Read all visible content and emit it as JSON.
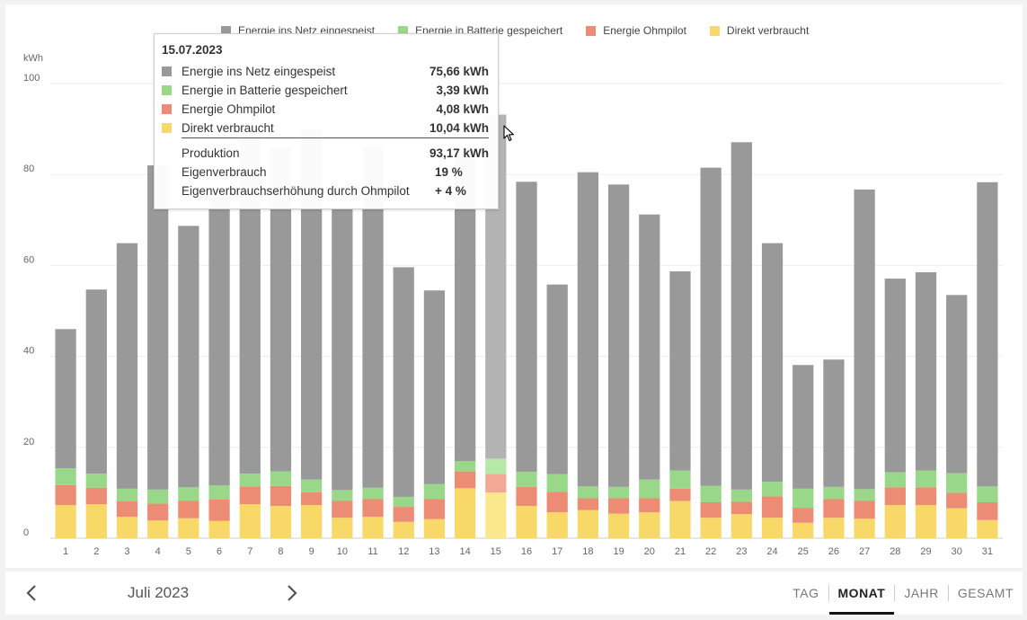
{
  "colors": {
    "grid": "#999999",
    "battery": "#99d888",
    "ohmpilot": "#ec8c75",
    "direct": "#f8d866",
    "grid_hl": "#b3b3b3",
    "battery_hl": "#b6e8a8",
    "ohmpilot_hl": "#f3a896",
    "direct_hl": "#fbe88c"
  },
  "legend": [
    {
      "label": "Energie ins Netz eingespeist",
      "color": "#999999"
    },
    {
      "label": "Energie in Batterie gespeichert",
      "color": "#99d888"
    },
    {
      "label": "Energie Ohmpilot",
      "color": "#ec8c75"
    },
    {
      "label": "Direkt verbraucht",
      "color": "#f8d866"
    }
  ],
  "chart_data": {
    "type": "bar",
    "stacked": true,
    "ylabel": "kWh",
    "ylim": [
      0,
      100
    ],
    "yticks": [
      0,
      20,
      40,
      60,
      80,
      100
    ],
    "grid": true,
    "legend_position": "top",
    "highlighted_category": "15",
    "categories": [
      "1",
      "2",
      "3",
      "4",
      "5",
      "6",
      "7",
      "8",
      "9",
      "10",
      "11",
      "12",
      "13",
      "14",
      "15",
      "16",
      "17",
      "18",
      "19",
      "20",
      "21",
      "22",
      "23",
      "24",
      "25",
      "26",
      "27",
      "28",
      "29",
      "30",
      "31"
    ],
    "series": [
      {
        "name": "Direkt verbraucht",
        "values": [
          7.3,
          7.5,
          4.7,
          3.9,
          4.4,
          3.8,
          7.5,
          7.1,
          7.3,
          4.5,
          4.7,
          3.6,
          4.2,
          11.0,
          10.04,
          7.1,
          5.7,
          6.2,
          5.4,
          5.7,
          8.2,
          4.5,
          5.3,
          4.5,
          3.4,
          4.5,
          4.3,
          7.3,
          7.3,
          6.6,
          4.0
        ]
      },
      {
        "name": "Energie Ohmpilot",
        "values": [
          4.4,
          3.6,
          3.4,
          3.7,
          3.8,
          4.7,
          3.9,
          4.4,
          2.8,
          3.7,
          3.9,
          3.3,
          4.4,
          3.7,
          4.08,
          4.2,
          4.5,
          2.6,
          3.4,
          3.1,
          2.7,
          3.4,
          2.7,
          4.7,
          3.3,
          4.1,
          3.9,
          3.9,
          3.9,
          3.4,
          3.9
        ]
      },
      {
        "name": "Energie in Batterie gespeichert",
        "values": [
          3.7,
          3.1,
          2.8,
          3.1,
          3.0,
          3.1,
          2.8,
          3.2,
          2.8,
          2.4,
          2.5,
          2.2,
          3.3,
          2.3,
          3.39,
          3.3,
          3.9,
          2.6,
          2.5,
          4.1,
          4.0,
          3.6,
          2.7,
          3.2,
          4.2,
          2.7,
          2.6,
          3.3,
          3.7,
          4.3,
          3.5
        ]
      },
      {
        "name": "Energie ins Netz eingespeist",
        "values": [
          30.6,
          40.5,
          54.0,
          71.3,
          57.5,
          63.4,
          75.8,
          71.3,
          77.1,
          62.1,
          75.0,
          50.5,
          42.6,
          69.0,
          75.66,
          63.8,
          41.7,
          69.1,
          66.5,
          58.3,
          43.8,
          70.0,
          76.4,
          52.5,
          27.2,
          28.0,
          65.9,
          42.6,
          43.6,
          39.2,
          66.9
        ]
      }
    ]
  },
  "tooltip": {
    "date": "15.07.2023",
    "rows": [
      {
        "label": "Energie ins Netz eingespeist",
        "value": "75,66 kWh",
        "color": "#999999"
      },
      {
        "label": "Energie in Batterie gespeichert",
        "value": "3,39 kWh",
        "color": "#99d888"
      },
      {
        "label": "Energie Ohmpilot",
        "value": "4,08 kWh",
        "color": "#ec8c75"
      },
      {
        "label": "Direkt verbraucht",
        "value": "10,04 kWh",
        "color": "#f8d866"
      }
    ],
    "summary": [
      {
        "label": "Produktion",
        "value": "93,17 kWh"
      },
      {
        "label": "Eigenverbrauch",
        "value": "19 %"
      },
      {
        "label": "Eigenverbrauchserhöhung durch Ohmpilot",
        "value": "+ 4 %"
      }
    ]
  },
  "footer": {
    "prev_icon": "chevron-left-icon",
    "next_icon": "chevron-right-icon",
    "period": "Juli 2023",
    "tabs": [
      {
        "label": "TAG",
        "active": false
      },
      {
        "label": "MONAT",
        "active": true
      },
      {
        "label": "JAHR",
        "active": false
      },
      {
        "label": "GESAMT",
        "active": false
      }
    ]
  }
}
